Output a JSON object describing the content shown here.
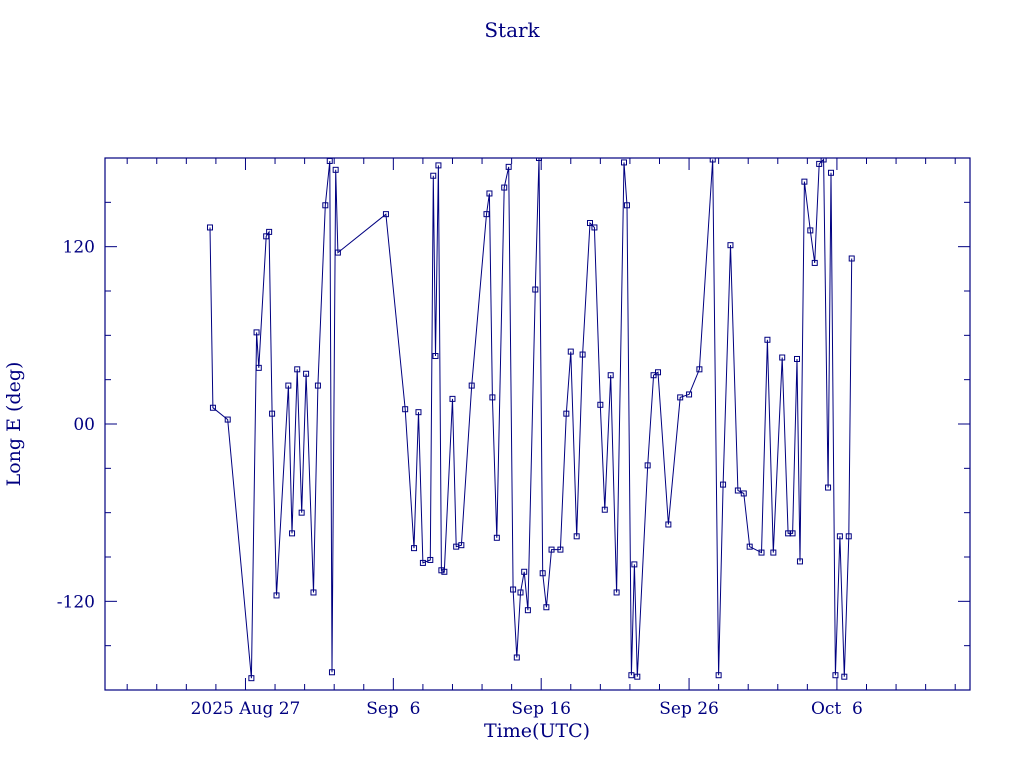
{
  "title": "Stark",
  "colors": {
    "line": "#000080",
    "background": "#ffffff"
  },
  "chart_data": {
    "type": "line",
    "title": "Stark",
    "xlabel": "Time(UTC)",
    "ylabel": "Long E (deg)",
    "xlim": [
      0,
      58.5
    ],
    "ylim": [
      -180,
      180
    ],
    "grid": false,
    "legend": "none",
    "marker": "open-square",
    "x_ticks": [
      {
        "pos": 9.5,
        "label": "2025 Aug 27"
      },
      {
        "pos": 19.5,
        "label": "Sep  6"
      },
      {
        "pos": 29.5,
        "label": "Sep 16"
      },
      {
        "pos": 39.5,
        "label": "Sep 26"
      },
      {
        "pos": 49.5,
        "label": "Oct  6"
      }
    ],
    "x_minor_step": 2,
    "y_ticks": [
      {
        "pos": 120,
        "label": "120"
      },
      {
        "pos": 0,
        "label": "00"
      },
      {
        "pos": -120,
        "label": "-120"
      }
    ],
    "y_minor_step": 30,
    "points": [
      [
        7.1,
        133
      ],
      [
        7.3,
        11
      ],
      [
        8.3,
        3
      ],
      [
        9.9,
        -172
      ],
      [
        10.25,
        62
      ],
      [
        10.4,
        38
      ],
      [
        10.9,
        127
      ],
      [
        11.1,
        130
      ],
      [
        11.3,
        7
      ],
      [
        11.6,
        -116
      ],
      [
        12.4,
        26
      ],
      [
        12.65,
        -74
      ],
      [
        13.0,
        37
      ],
      [
        13.3,
        -60
      ],
      [
        13.6,
        34
      ],
      [
        14.1,
        -114
      ],
      [
        14.4,
        26
      ],
      [
        14.9,
        148
      ],
      [
        15.2,
        178
      ],
      [
        15.35,
        -168
      ],
      [
        15.6,
        172
      ],
      [
        15.75,
        116
      ],
      [
        19.0,
        142
      ],
      [
        20.3,
        10
      ],
      [
        20.9,
        -84
      ],
      [
        21.2,
        8
      ],
      [
        21.5,
        -94
      ],
      [
        22.0,
        -92
      ],
      [
        22.2,
        168
      ],
      [
        22.35,
        46
      ],
      [
        22.55,
        175
      ],
      [
        22.75,
        -99
      ],
      [
        22.95,
        -100
      ],
      [
        23.5,
        17
      ],
      [
        23.75,
        -83
      ],
      [
        24.1,
        -82
      ],
      [
        24.8,
        26
      ],
      [
        25.8,
        142
      ],
      [
        26.0,
        156
      ],
      [
        26.2,
        18
      ],
      [
        26.5,
        -77
      ],
      [
        27.0,
        160
      ],
      [
        27.3,
        174
      ],
      [
        27.6,
        -112
      ],
      [
        27.85,
        -158
      ],
      [
        28.1,
        -114
      ],
      [
        28.35,
        -100
      ],
      [
        28.6,
        -126
      ],
      [
        29.1,
        91
      ],
      [
        29.35,
        180
      ],
      [
        29.6,
        -101
      ],
      [
        29.85,
        -124
      ],
      [
        30.2,
        -85
      ],
      [
        30.8,
        -85
      ],
      [
        31.2,
        7
      ],
      [
        31.5,
        49
      ],
      [
        31.9,
        -76
      ],
      [
        32.3,
        47
      ],
      [
        32.8,
        136
      ],
      [
        33.1,
        133
      ],
      [
        33.5,
        13
      ],
      [
        33.8,
        -58
      ],
      [
        34.2,
        33
      ],
      [
        34.6,
        -114
      ],
      [
        35.1,
        177
      ],
      [
        35.3,
        148
      ],
      [
        35.6,
        -170
      ],
      [
        35.8,
        -95
      ],
      [
        36.0,
        -171
      ],
      [
        36.7,
        -28
      ],
      [
        37.1,
        33
      ],
      [
        37.4,
        35
      ],
      [
        38.1,
        -68
      ],
      [
        38.9,
        18
      ],
      [
        39.5,
        20
      ],
      [
        40.2,
        37
      ],
      [
        41.1,
        179
      ],
      [
        41.5,
        -170
      ],
      [
        41.8,
        -41
      ],
      [
        42.3,
        121
      ],
      [
        42.8,
        -45
      ],
      [
        43.2,
        -47
      ],
      [
        43.6,
        -83
      ],
      [
        44.4,
        -87
      ],
      [
        44.8,
        57
      ],
      [
        45.2,
        -87
      ],
      [
        45.8,
        45
      ],
      [
        46.2,
        -74
      ],
      [
        46.5,
        -74
      ],
      [
        46.8,
        44
      ],
      [
        47.0,
        -93
      ],
      [
        47.3,
        164
      ],
      [
        47.7,
        131
      ],
      [
        48.0,
        109
      ],
      [
        48.3,
        176
      ],
      [
        48.6,
        179
      ],
      [
        48.9,
        -43
      ],
      [
        49.1,
        170
      ],
      [
        49.4,
        -170
      ],
      [
        49.7,
        -76
      ],
      [
        50.0,
        -171
      ],
      [
        50.3,
        -76
      ],
      [
        50.5,
        112
      ]
    ]
  }
}
